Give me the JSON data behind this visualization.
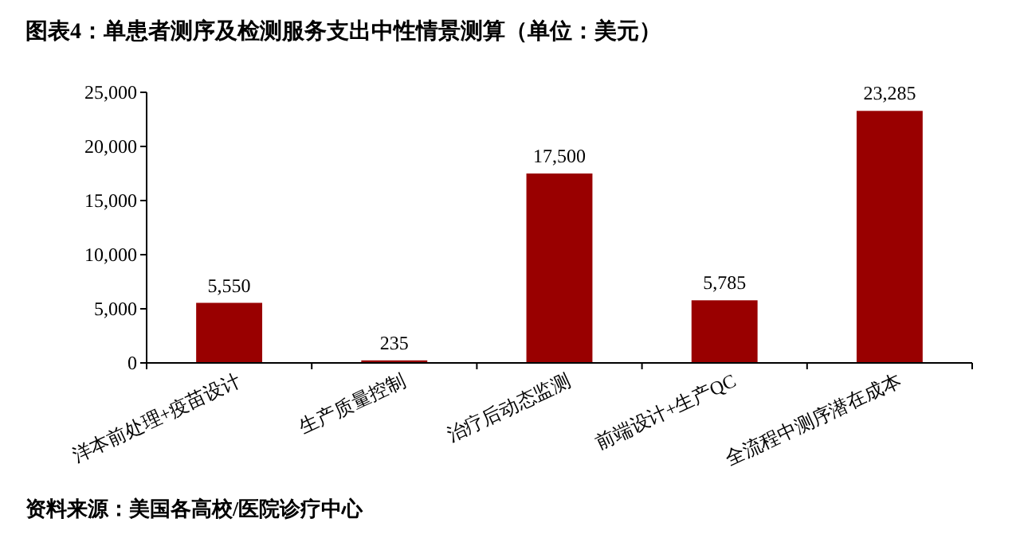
{
  "chart_data": {
    "type": "bar",
    "title": "图表4：单患者测序及检测服务支出中性情景测算（单位：美元）",
    "categories": [
      "洋本前处理+疫苗设计",
      "生产质量控制",
      "治疗后动态监测",
      "前端设计+生产QC",
      "全流程中测序潜在成本"
    ],
    "values": [
      5550,
      235,
      17500,
      5785,
      23285
    ],
    "color": "#990000",
    "ylim": [
      0,
      25000
    ],
    "yticks": [
      {
        "value": 0,
        "label": "0"
      },
      {
        "value": 5000,
        "label": "5,000"
      },
      {
        "value": 10000,
        "label": "10,000"
      },
      {
        "value": 15000,
        "label": "15,000"
      },
      {
        "value": 20000,
        "label": "20,000"
      },
      {
        "value": 25000,
        "label": "25,000"
      }
    ],
    "value_labels": [
      "5,550",
      "235",
      "17,500",
      "5,785",
      "23,285"
    ],
    "grid": false,
    "annotations": [
      "资料来源：美国各高校/医院诊疗中心"
    ]
  }
}
